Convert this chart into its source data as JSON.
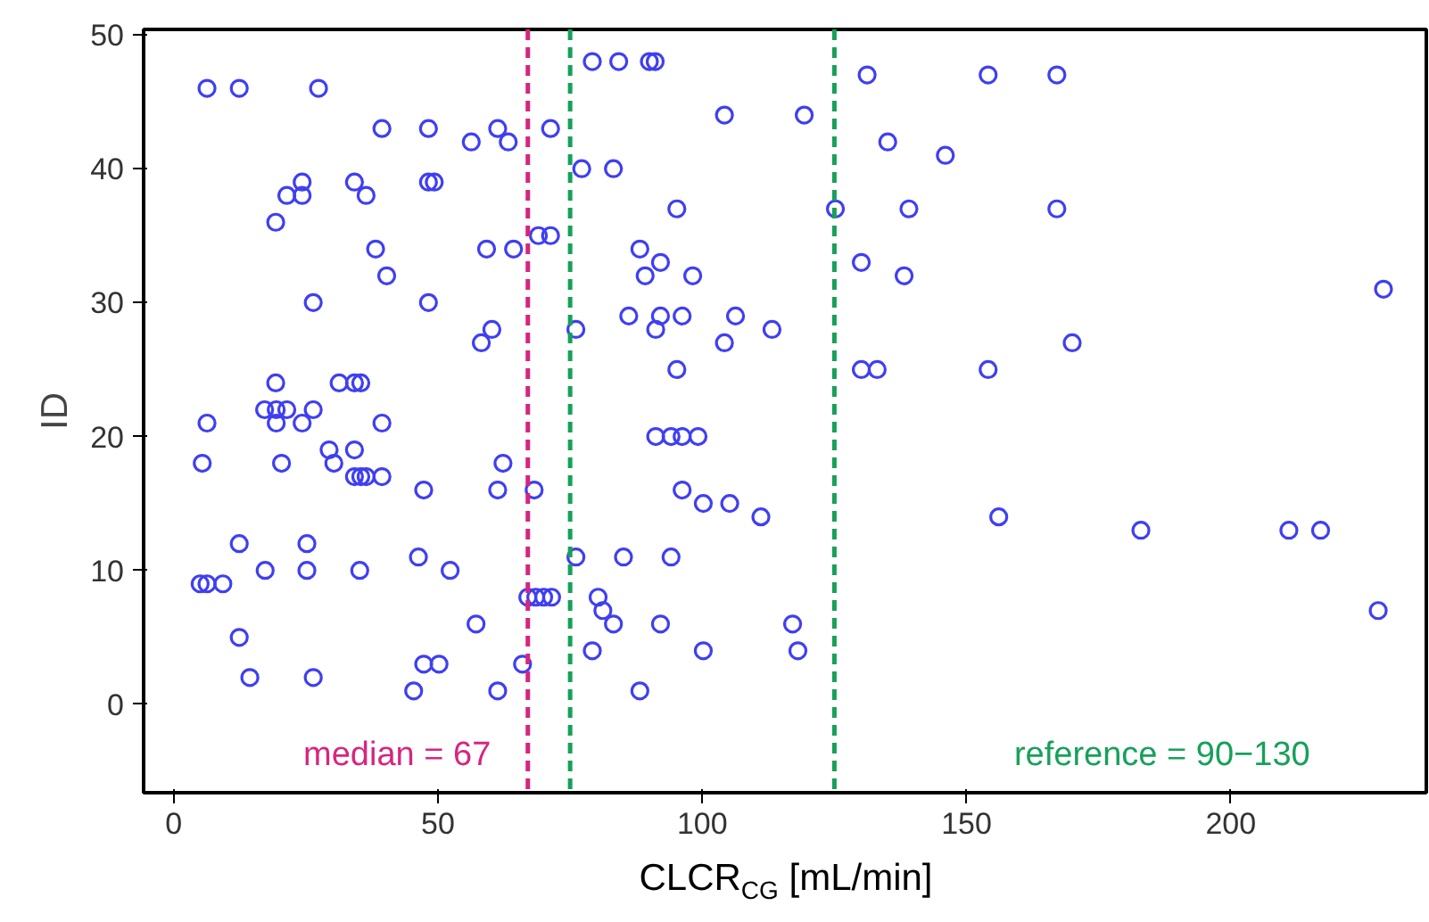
{
  "chart_data": {
    "type": "scatter",
    "xlabel": "CLCR$_{CG}$ [mL/min]",
    "ylabel": "ID",
    "xlim": [
      -5.7,
      237
    ],
    "ylim": [
      -6.6,
      50.4
    ],
    "xticks": [
      0,
      50,
      100,
      150,
      200
    ],
    "yticks": [
      0,
      10,
      20,
      30,
      40,
      50
    ],
    "grid": false,
    "marker": "circle",
    "series": [
      {
        "color": "#3f3ff2",
        "x": [
          6.3,
          12.4,
          27.4,
          39.4,
          48.2,
          61.3,
          71.3,
          56.3,
          63.3,
          135.1,
          77.2,
          83.2,
          24.3,
          34.2,
          48.2,
          49.3,
          21.4,
          24.3,
          36.4,
          19.3,
          69.0,
          71.3,
          38.2,
          59.2,
          64.3,
          88.2,
          40.3,
          26.4,
          48.2,
          58.2,
          60.2,
          76.1,
          19.3,
          31.3,
          34.2,
          35.4,
          17.2,
          19.4,
          21.4,
          26.4,
          6.3,
          19.4,
          24.3,
          39.4,
          29.4,
          34.2,
          5.4,
          20.4,
          30.3,
          62.3,
          34.2,
          35.4,
          36.4,
          39.4,
          47.3,
          61.3,
          68.2,
          96.2,
          12.4,
          25.2,
          46.3,
          76.1,
          85.1,
          94.1,
          17.3,
          25.2,
          35.2,
          52.3,
          5.0,
          6.3,
          9.3,
          67,
          68.5,
          70,
          71.5,
          80.3,
          57.2,
          83.2,
          92.1,
          117.1,
          12.4,
          79.2,
          100.2,
          118.1,
          47.3,
          50.2,
          66.0,
          14.4,
          26.4,
          45.4,
          61.3,
          88.2,
          79.2,
          84.2,
          90.0,
          91.1,
          131.2,
          154.1,
          167.1,
          104.2,
          119.3,
          146,
          95.2,
          125.2,
          139.1,
          167.1,
          92.1,
          130.1,
          89.2,
          98.2,
          138.2,
          228.9,
          86.1,
          92.1,
          96.2,
          106.3,
          91.2,
          113.2,
          104.2,
          170.0,
          95.2,
          130.1,
          133.1,
          154.1,
          91.2,
          94.1,
          96.2,
          99.2,
          100.2,
          105.2,
          111.1,
          156.1,
          183,
          211,
          217,
          81.2,
          227.9
        ],
        "values": [
          46,
          46,
          46,
          43,
          43,
          43,
          43,
          42,
          42,
          42,
          40,
          40,
          39,
          39,
          39,
          39,
          38,
          38,
          38,
          36,
          35,
          35,
          34,
          34,
          34,
          34,
          32,
          30,
          30,
          27,
          28,
          28,
          24,
          24,
          24,
          24,
          22,
          22,
          22,
          22,
          21,
          21,
          21,
          21,
          19,
          19,
          18,
          18,
          18,
          18,
          17,
          17,
          17,
          17,
          16,
          16,
          16,
          16,
          12,
          12,
          11,
          11,
          11,
          11,
          10,
          10,
          10,
          10,
          9,
          9,
          9,
          8,
          8,
          8,
          8,
          8,
          6,
          6,
          6,
          6,
          5,
          4,
          4,
          4,
          3,
          3,
          3,
          2,
          2,
          1,
          1,
          1,
          48,
          48,
          48,
          48,
          47,
          47,
          47,
          44,
          44,
          41,
          37,
          37,
          37,
          37,
          33,
          33,
          32,
          32,
          32,
          31,
          29,
          29,
          29,
          29,
          28,
          28,
          27,
          27,
          25,
          25,
          25,
          25,
          20,
          20,
          20,
          20,
          15,
          15,
          14,
          14,
          13,
          13,
          13,
          7,
          7
        ]
      }
    ],
    "ref_lines": [
      {
        "axis": "x",
        "value": 67,
        "label": "median = 67",
        "color": "#d6267f",
        "line_style": "dashed"
      },
      {
        "axis": "x",
        "value": 75,
        "label": null,
        "color": "#17a05a",
        "line_style": "dashed"
      },
      {
        "axis": "x",
        "value": 125,
        "label": null,
        "color": "#17a05a",
        "line_style": "dashed"
      }
    ],
    "annotations": [
      "reference = 90−130"
    ]
  }
}
